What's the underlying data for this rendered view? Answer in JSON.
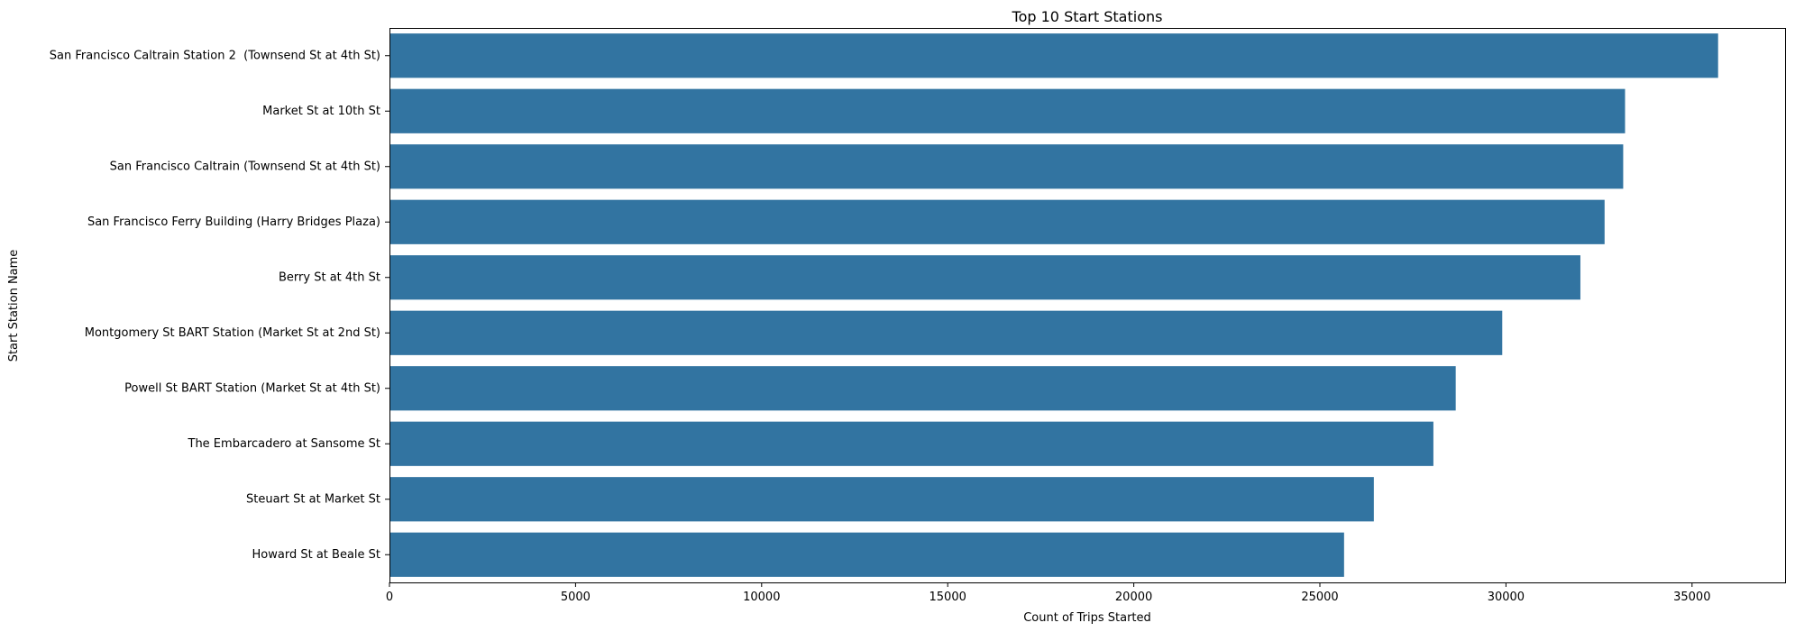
{
  "chart_data": {
    "type": "bar",
    "orientation": "horizontal",
    "title": "Top 10 Start Stations",
    "xlabel": "Count of Trips Started",
    "ylabel": "Start Station Name",
    "xlim": [
      0,
      37500
    ],
    "xticks": [
      0,
      5000,
      10000,
      15000,
      20000,
      25000,
      30000,
      35000
    ],
    "grid": false,
    "bar_color": "#3274a1",
    "categories": [
      "San Francisco Caltrain Station 2  (Townsend St at 4th St)",
      "Market St at 10th St",
      "San Francisco Caltrain (Townsend St at 4th St)",
      "San Francisco Ferry Building (Harry Bridges Plaza)",
      "Berry St at 4th St",
      "Montgomery St BART Station (Market St at 2nd St)",
      "Powell St BART Station (Market St at 4th St)",
      "The Embarcadero at Sansome St",
      "Steuart St at Market St",
      "Howard St at Beale St"
    ],
    "values": [
      35700,
      33200,
      33150,
      32650,
      32000,
      29900,
      28650,
      28050,
      26450,
      25650
    ]
  }
}
